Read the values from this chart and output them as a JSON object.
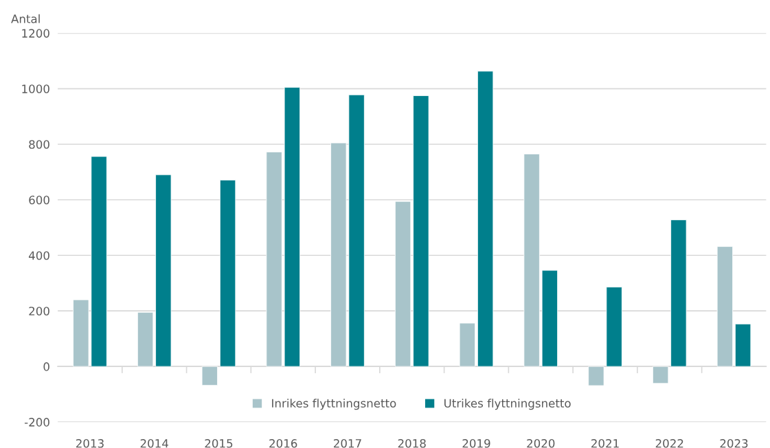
{
  "chart_data": {
    "type": "bar",
    "ylabel": "Antal",
    "categories": [
      "2013",
      "2014",
      "2015",
      "2016",
      "2017",
      "2018",
      "2019",
      "2020",
      "2021",
      "2022",
      "2023"
    ],
    "series": [
      {
        "name": "Inrikes flyttningsnetto",
        "color": "#a8c4ca",
        "values": [
          240,
          195,
          -68,
          772,
          805,
          594,
          156,
          765,
          -69,
          -61,
          432
        ]
      },
      {
        "name": "Utrikes flyttningsnetto",
        "color": "#007f8c",
        "values": [
          756,
          690,
          671,
          1005,
          978,
          975,
          1063,
          346,
          286,
          528,
          153
        ]
      }
    ],
    "ylim": [
      -200,
      1200
    ],
    "yticks": [
      -200,
      0,
      200,
      400,
      600,
      800,
      1000,
      1200
    ],
    "grid": "y",
    "legend": "bottom"
  }
}
